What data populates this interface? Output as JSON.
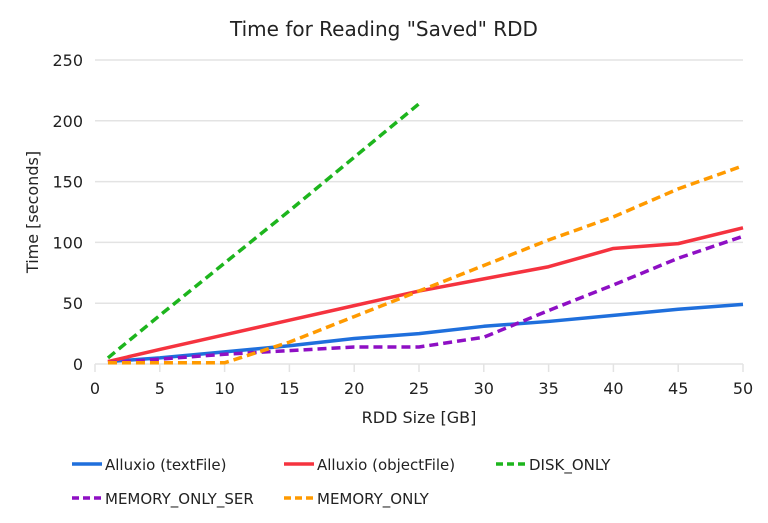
{
  "chart_data": {
    "type": "line",
    "title": "Time for Reading \"Saved\" RDD",
    "xlabel": "RDD Size [GB]",
    "ylabel": "Time [seconds]",
    "xlim": [
      0,
      50
    ],
    "ylim": [
      0,
      250
    ],
    "xticks": [
      0,
      5,
      10,
      15,
      20,
      25,
      30,
      35,
      40,
      45,
      50
    ],
    "yticks": [
      0,
      50,
      100,
      150,
      200,
      250
    ],
    "grid": "horizontal",
    "legend": "bottom",
    "series": [
      {
        "name": "Alluxio (textFile)",
        "color": "#1f6fdc",
        "dashed": false,
        "x": [
          1,
          5,
          10,
          15,
          20,
          25,
          30,
          35,
          40,
          45,
          50
        ],
        "y": [
          2,
          5,
          10,
          15,
          21,
          25,
          31,
          35,
          40,
          45,
          49
        ]
      },
      {
        "name": "Alluxio (objectFile)",
        "color": "#f5333f",
        "dashed": false,
        "x": [
          1,
          5,
          10,
          15,
          20,
          25,
          30,
          35,
          40,
          45,
          50
        ],
        "y": [
          2,
          12,
          24,
          36,
          48,
          60,
          70,
          80,
          95,
          99,
          112
        ]
      },
      {
        "name": "DISK_ONLY",
        "color": "#1db51d",
        "dashed": true,
        "x": [
          1,
          5,
          10,
          15,
          20,
          25
        ],
        "y": [
          5,
          40,
          83,
          126,
          170,
          214
        ]
      },
      {
        "name": "MEMORY_ONLY_SER",
        "color": "#8e0fc4",
        "dashed": true,
        "x": [
          1,
          5,
          10,
          15,
          20,
          25,
          30,
          35,
          40,
          45,
          50
        ],
        "y": [
          1,
          4,
          8,
          11,
          14,
          14,
          22,
          44,
          65,
          87,
          105
        ]
      },
      {
        "name": "MEMORY_ONLY",
        "color": "#ff9a00",
        "dashed": true,
        "x": [
          1,
          5,
          10,
          15,
          20,
          25,
          30,
          35,
          40,
          45,
          50
        ],
        "y": [
          1,
          1,
          1,
          18,
          39,
          60,
          81,
          102,
          121,
          144,
          163
        ]
      }
    ]
  }
}
